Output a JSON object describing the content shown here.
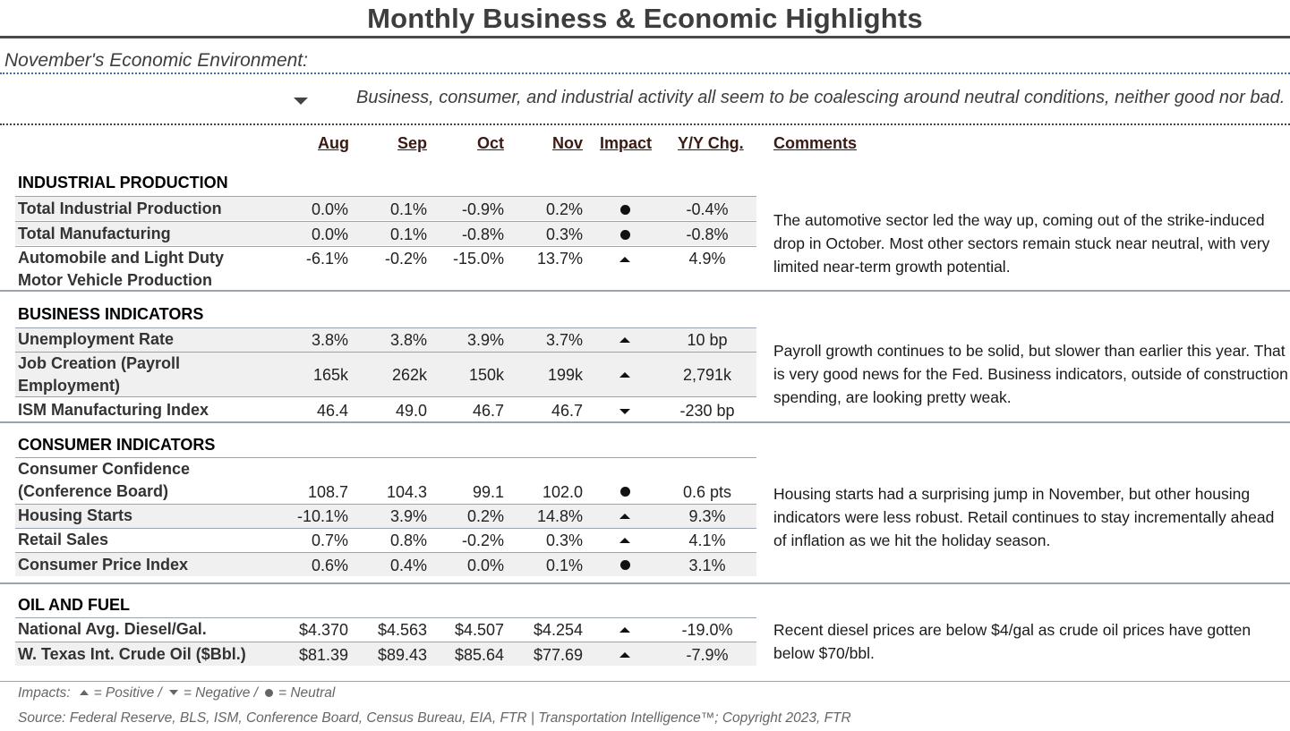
{
  "title": "Monthly Business & Economic Highlights",
  "subheading": "November's Economic Environment:",
  "summary": {
    "icon": "triangle-down-icon",
    "text": "Business, consumer, and industrial activity all seem to be coalescing around neutral conditions, neither good nor bad."
  },
  "columns": {
    "aug": "Aug",
    "sep": "Sep",
    "oct": "Oct",
    "nov": "Nov",
    "impact": "Impact",
    "yy": "Y/Y Chg.",
    "comments": "Comments"
  },
  "sections": [
    {
      "name": "INDUSTRIAL PRODUCTION",
      "rows": [
        {
          "label": "Total Industrial Production",
          "aug": "0.0%",
          "sep": "0.1%",
          "oct": "-0.9%",
          "nov": "0.2%",
          "impact": "neutral",
          "yy": "-0.4%"
        },
        {
          "label": "Total Manufacturing",
          "aug": "0.0%",
          "sep": "0.1%",
          "oct": "-0.8%",
          "nov": "0.3%",
          "impact": "neutral",
          "yy": "-0.8%"
        },
        {
          "label_line1": "Automobile and Light Duty",
          "label_line2": "Motor Vehicle Production",
          "aug": "-6.1%",
          "sep": "-0.2%",
          "oct": "-15.0%",
          "nov": "13.7%",
          "impact": "positive",
          "yy": "4.9%"
        }
      ],
      "comment": "The automotive sector led the way up, coming out of the strike-induced drop in October. Most other sectors remain stuck near neutral, with very limited near-term growth potential."
    },
    {
      "name": "BUSINESS INDICATORS",
      "rows": [
        {
          "label": "Unemployment Rate",
          "aug": "3.8%",
          "sep": "3.8%",
          "oct": "3.9%",
          "nov": "3.7%",
          "impact": "positive",
          "yy": "10 bp"
        },
        {
          "label_line1": "Job Creation (Payroll",
          "label_line2": "Employment)",
          "aug": "165k",
          "sep": "262k",
          "oct": "150k",
          "nov": "199k",
          "impact": "positive",
          "yy": "2,791k"
        },
        {
          "label": "ISM Manufacturing Index",
          "aug": "46.4",
          "sep": "49.0",
          "oct": "46.7",
          "nov": "46.7",
          "impact": "negative",
          "yy": "-230 bp"
        }
      ],
      "comment": "Payroll growth continues to be solid, but slower than earlier this year. That is very good news for the Fed. Business indicators, outside of construction spending, are looking pretty weak."
    },
    {
      "name": "CONSUMER INDICATORS",
      "rows": [
        {
          "label_line1": "Consumer Confidence",
          "label_line2": "(Conference Board)",
          "aug": "108.7",
          "sep": "104.3",
          "oct": "99.1",
          "nov": "102.0",
          "impact": "neutral",
          "yy": "0.6 pts"
        },
        {
          "label": "Housing Starts",
          "aug": "-10.1%",
          "sep": "3.9%",
          "oct": "0.2%",
          "nov": "14.8%",
          "impact": "positive",
          "yy": "9.3%"
        },
        {
          "label": "Retail Sales",
          "aug": "0.7%",
          "sep": "0.8%",
          "oct": "-0.2%",
          "nov": "0.3%",
          "impact": "positive",
          "yy": "4.1%"
        },
        {
          "label": "Consumer Price Index",
          "aug": "0.6%",
          "sep": "0.4%",
          "oct": "0.0%",
          "nov": "0.1%",
          "impact": "neutral",
          "yy": "3.1%"
        }
      ],
      "comment": "Housing starts had a surprising jump in November, but other housing indicators were less robust. Retail continues to stay incrementally ahead of inflation as we hit the holiday season."
    },
    {
      "name": "OIL AND FUEL",
      "rows": [
        {
          "label": "National Avg. Diesel/Gal.",
          "aug": "$4.370",
          "sep": "$4.563",
          "oct": "$4.507",
          "nov": "$4.254",
          "impact": "positive",
          "yy": "-19.0%"
        },
        {
          "label": "W. Texas Int. Crude Oil ($Bbl.)",
          "aug": "$81.39",
          "sep": "$89.43",
          "oct": "$85.64",
          "nov": "$77.69",
          "impact": "positive",
          "yy": "-7.9%"
        }
      ],
      "comment": "Recent diesel prices are below $4/gal as crude oil prices have gotten below $70/bbl."
    }
  ],
  "footer": {
    "impacts_prefix": "Impacts:",
    "positive_text": "= Positive /",
    "negative_text": "= Negative /",
    "neutral_text": "= Neutral",
    "source": "Source: Federal Reserve, BLS, ISM, Conference Board, Census Bureau, EIA, FTR | Transportation Intelligence™; Copyright 2023, FTR"
  }
}
